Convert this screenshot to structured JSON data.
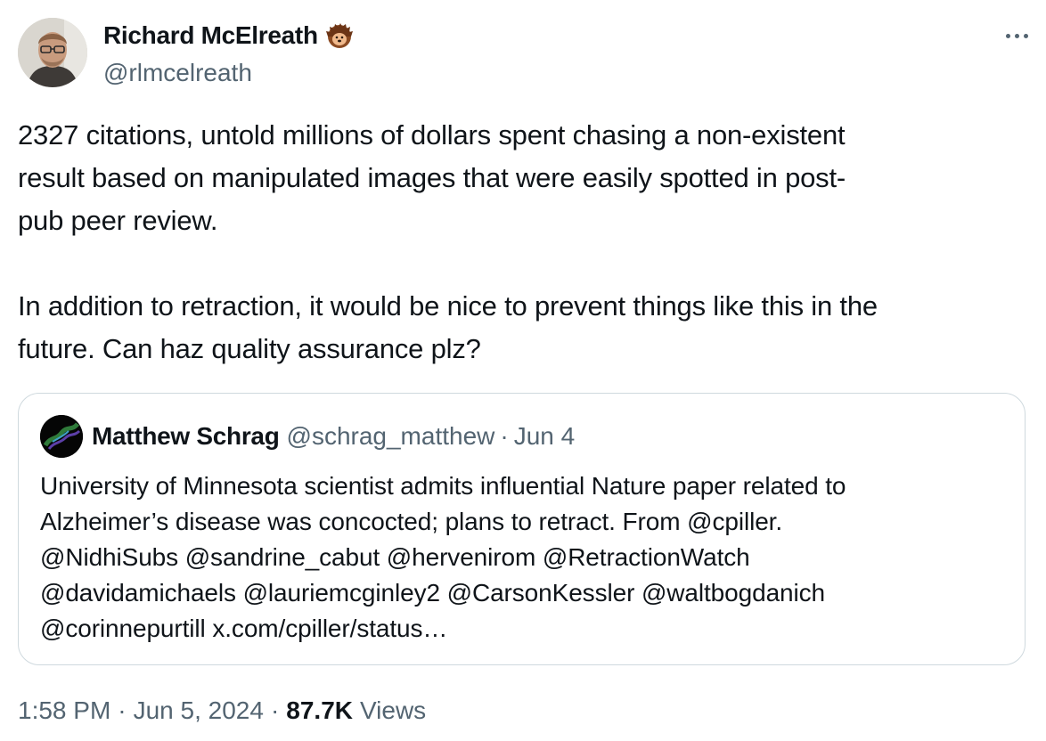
{
  "author": {
    "name": "Richard McElreath",
    "handle": "@rlmcelreath",
    "badge_icon": "hedgehog-emoji-icon"
  },
  "tweet": {
    "paragraph1_lines": [
      "2327 citations, untold millions of dollars spent chasing a non-existent",
      "result based on manipulated images that were easily spotted in post-",
      "pub peer review."
    ],
    "paragraph2_lines": [
      "In addition to retraction, it would be nice to prevent things like this in the",
      "future. Can haz quality assurance plz?"
    ]
  },
  "quoted_tweet": {
    "name": "Matthew Schrag",
    "handle": "@schrag_matthew",
    "separator": "·",
    "date": "Jun 4",
    "text_lines": [
      "University of Minnesota scientist admits influential Nature paper related to",
      "Alzheimer’s disease was concocted; plans to retract. From @cpiller.",
      "@NidhiSubs @sandrine_cabut @hervenirom @RetractionWatch",
      "@davidamichaels @lauriemcginley2 @CarsonKessler @waltbogdanich",
      "@corinnepurtill x.com/cpiller/status…"
    ]
  },
  "meta": {
    "time": "1:58 PM",
    "separator": "·",
    "date": "Jun 5, 2024",
    "views_count": "87.7K",
    "views_label": "Views"
  },
  "colors": {
    "text": "#0f1419",
    "secondary": "#536471",
    "border": "#cfd9de"
  }
}
